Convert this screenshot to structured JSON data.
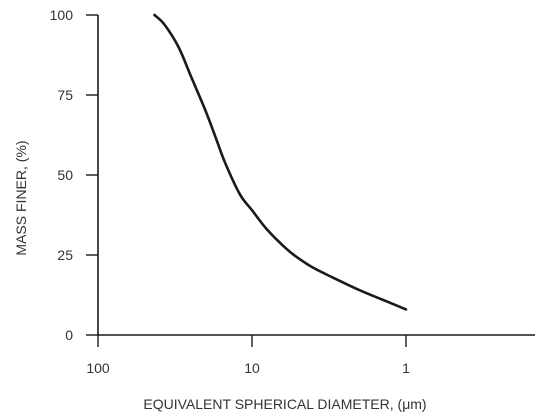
{
  "chart_data": {
    "type": "line",
    "title": "",
    "xlabel": "EQUIVALENT SPHERICAL DIAMETER, (μm)",
    "ylabel": "MASS FINER, (%)",
    "x_scale": "log",
    "x_reversed": true,
    "xlim": [
      100,
      0.1
    ],
    "ylim": [
      0,
      100
    ],
    "x_ticks": [
      100,
      10,
      1
    ],
    "x_tick_labels": [
      "100",
      "10",
      "1"
    ],
    "y_ticks": [
      0,
      25,
      50,
      75,
      100
    ],
    "y_tick_labels": [
      "0",
      "25",
      "50",
      "75",
      "100"
    ],
    "grid": false,
    "line_color": "#1a1a1a",
    "series": [
      {
        "x": [
          43,
          37,
          30,
          25,
          20,
          17,
          15,
          12,
          10,
          8,
          6,
          5,
          4,
          3,
          2,
          1.5,
          1
        ],
        "y": [
          100,
          97,
          90,
          81,
          70,
          61,
          54,
          44,
          39,
          33,
          27,
          24,
          21,
          18,
          14,
          11.5,
          8
        ]
      }
    ]
  }
}
